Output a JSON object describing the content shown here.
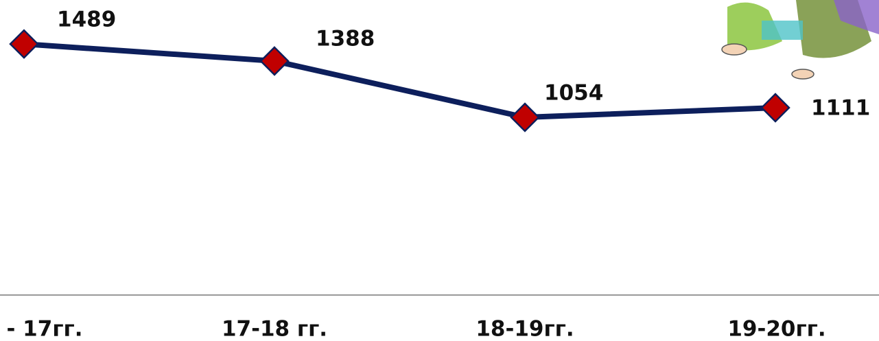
{
  "chart_data": {
    "type": "line",
    "categories": [
      "- 17гг.",
      "17-18 гг.",
      "18-19гг.",
      "19-20гг."
    ],
    "series": [
      {
        "color": "#0d1f5c",
        "marker_color": "#c00000",
        "values": [
          1489,
          1388,
          1054,
          1111
        ]
      }
    ],
    "ylim": [
      0,
      1750
    ]
  }
}
